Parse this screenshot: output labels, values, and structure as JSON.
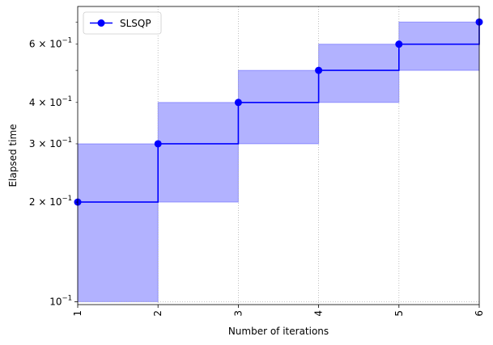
{
  "chart_data": {
    "type": "line",
    "drawstyle": "steps-post",
    "title": "",
    "xlabel": "Number of iterations",
    "ylabel": "Elapsed time",
    "xscale": "linear",
    "yscale": "log",
    "xlim": [
      1,
      6
    ],
    "ylim": [
      0.098,
      0.78
    ],
    "xticks": [
      1,
      2,
      3,
      4,
      5,
      6
    ],
    "xtick_labels": [
      "1",
      "2",
      "3",
      "4",
      "5",
      "6"
    ],
    "xtick_rotation": 90,
    "yticks_major": [
      0.1
    ],
    "ytick_major_labels": [
      "10",
      "−1"
    ],
    "yticks_minor_labeled": [
      0.2,
      0.3,
      0.4,
      0.6
    ],
    "ytick_minor_labels": [
      [
        "2 × 10",
        "−1"
      ],
      [
        "3 × 10",
        "−1"
      ],
      [
        "4 × 10",
        "−1"
      ],
      [
        "6 × 10",
        "−1"
      ]
    ],
    "yticks_minor_unlabeled": [
      0.5,
      0.7
    ],
    "grid": {
      "x": true,
      "y_major": true,
      "style": "dotted"
    },
    "legend": {
      "placement": "upper-left",
      "entries": [
        "SLSQP"
      ]
    },
    "series": [
      {
        "name": "SLSQP",
        "color": "#0000ff",
        "marker": "circle",
        "x": [
          1,
          2,
          3,
          4,
          5,
          6
        ],
        "y": [
          0.2,
          0.3,
          0.4,
          0.5,
          0.6,
          0.7
        ]
      }
    ],
    "band": {
      "color": "#0000ff",
      "opacity": 0.3,
      "x": [
        1,
        2,
        3,
        4,
        5,
        6
      ],
      "lower": [
        0.1,
        0.2,
        0.3,
        0.4,
        0.5,
        0.6
      ],
      "upper": [
        0.3,
        0.4,
        0.5,
        0.6,
        0.7,
        0.8
      ]
    }
  }
}
